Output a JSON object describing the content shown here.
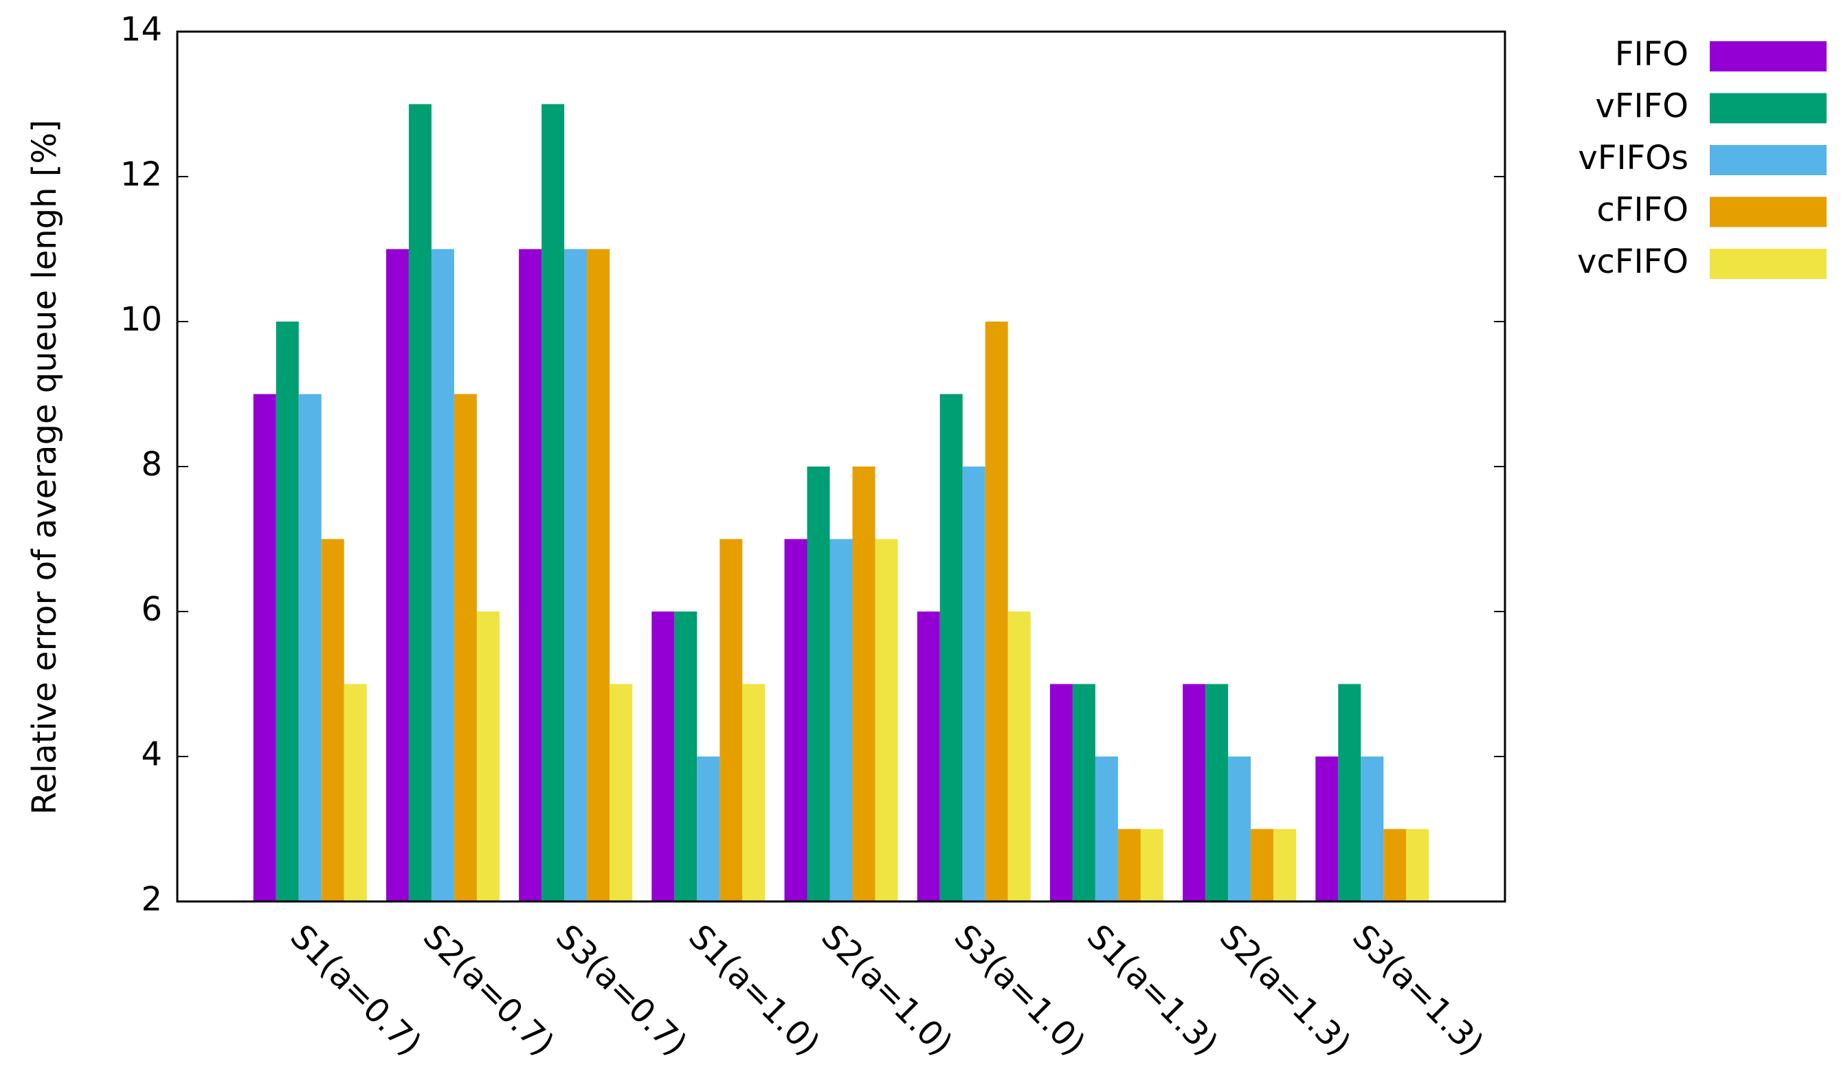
{
  "chart_data": {
    "type": "bar",
    "y_label": "Relative error of average queue lengh [%]",
    "categories": [
      "S1(a=0.7)",
      "S2(a=0.7)",
      "S3(a=0.7)",
      "S1(a=1.0)",
      "S2(a=1.0)",
      "S3(a=1.0)",
      "S1(a=1.3)",
      "S2(a=1.3)",
      "S3(a=1.3)"
    ],
    "series": [
      {
        "name": "FIFO",
        "color": "#9400d3",
        "values": [
          9,
          11,
          11,
          6,
          7,
          6,
          5,
          5,
          4
        ]
      },
      {
        "name": "vFIFO",
        "color": "#009e73",
        "values": [
          10,
          13,
          13,
          6,
          8,
          9,
          5,
          5,
          5
        ]
      },
      {
        "name": "vFIFOs",
        "color": "#56b4e9",
        "values": [
          9,
          11,
          11,
          4,
          7,
          8,
          4,
          4,
          4
        ]
      },
      {
        "name": "cFIFO",
        "color": "#e69f00",
        "values": [
          7,
          9,
          11,
          7,
          8,
          10,
          3,
          3,
          3
        ]
      },
      {
        "name": "vcFIFO",
        "color": "#f0e442",
        "values": [
          5,
          6,
          5,
          5,
          7,
          6,
          3,
          3,
          3
        ]
      }
    ],
    "ylim": [
      2,
      14
    ],
    "yticks": [
      2,
      4,
      6,
      8,
      10,
      12,
      14
    ],
    "grid": false,
    "legend": "top-right"
  }
}
